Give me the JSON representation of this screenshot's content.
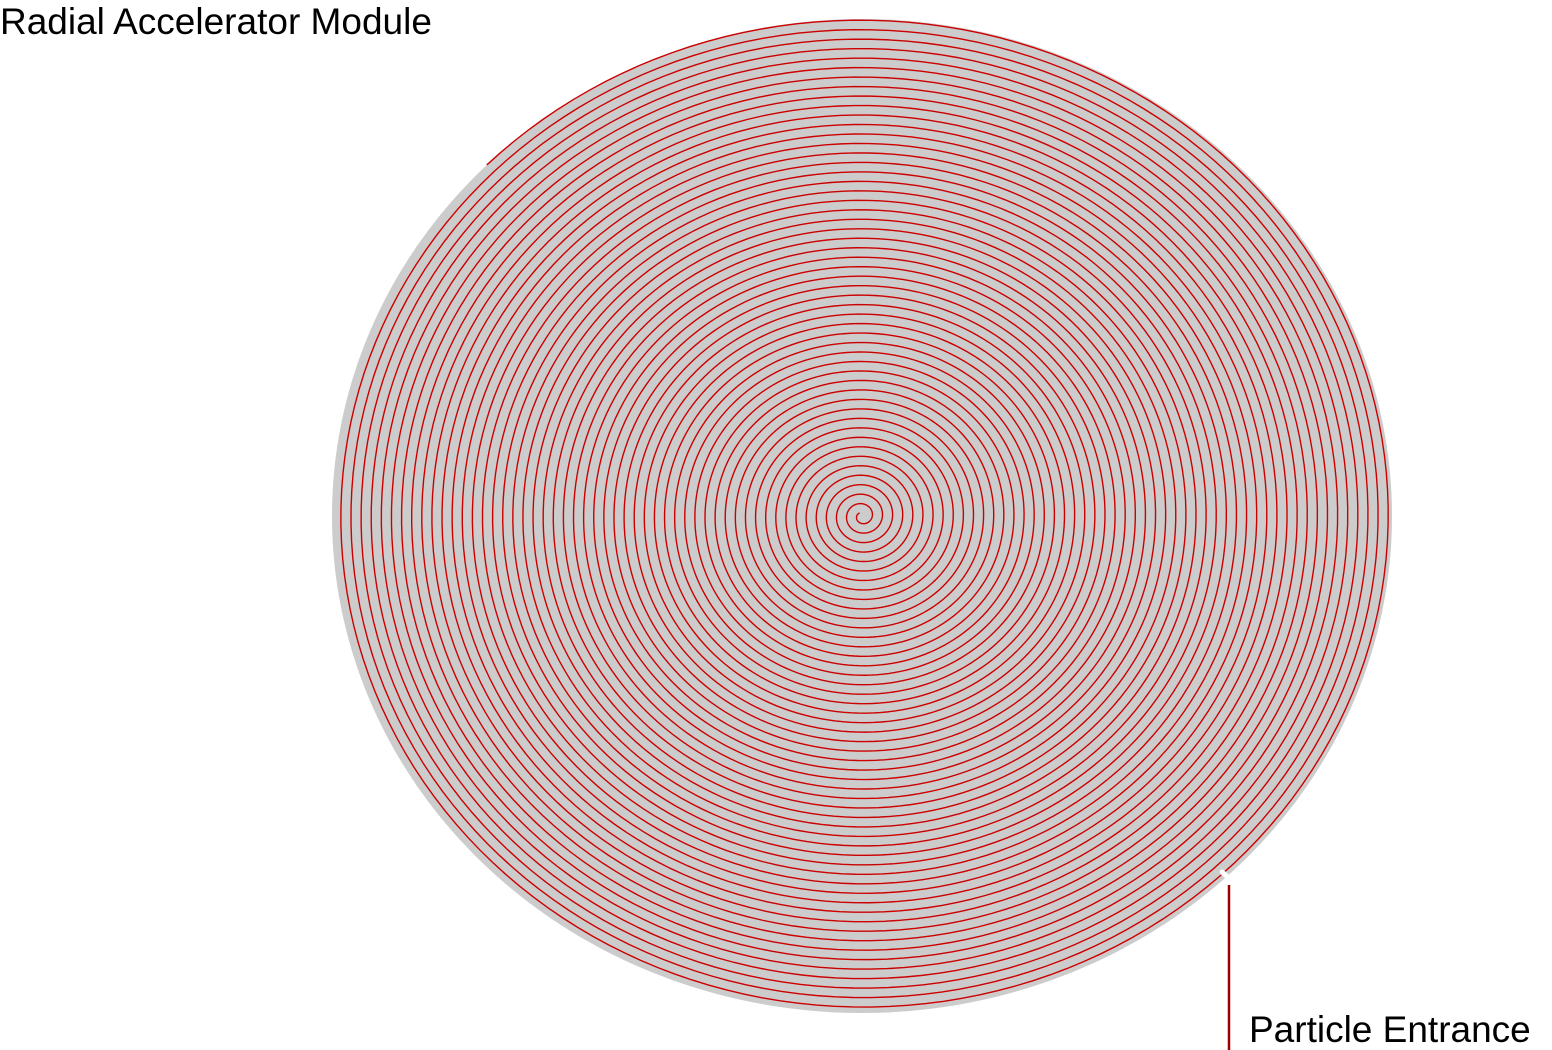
{
  "title": "Radial Accelerator Module",
  "entrance_label": "Particle Entrance",
  "colors": {
    "background": "#ffffff",
    "disk_fill": "#cccccc",
    "spiral_stroke": "#cc0000",
    "lead_stroke": "#990000",
    "label_text": "#000000"
  }
}
